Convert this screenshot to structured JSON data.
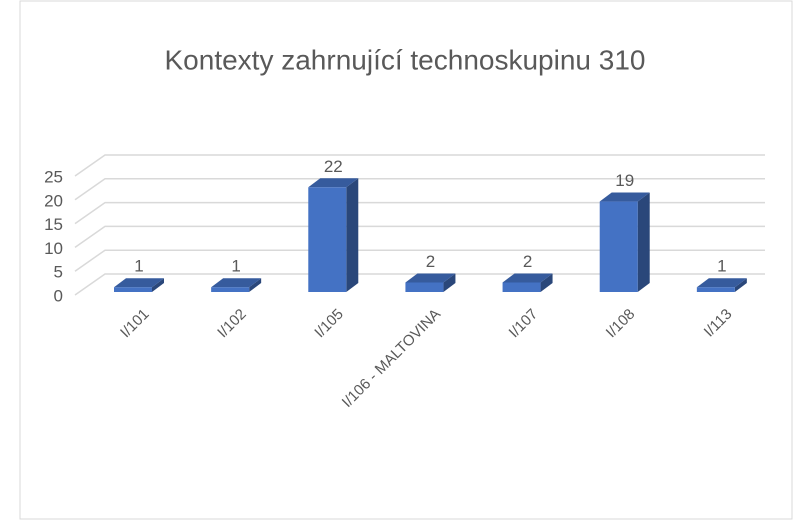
{
  "chart_data": {
    "type": "bar3d",
    "title": "Kontexty zahrnující technoskupinu 310",
    "categories": [
      "I/101",
      "I/102",
      "I/105",
      "I/106 - MALTOVINA",
      "I/107",
      "I/108",
      "I/113"
    ],
    "values": [
      1,
      1,
      22,
      2,
      2,
      19,
      1
    ],
    "color": "#4472c4",
    "ylim": [
      0,
      25
    ],
    "yticks": [
      0,
      5,
      10,
      15,
      20,
      25
    ],
    "grid": true
  }
}
